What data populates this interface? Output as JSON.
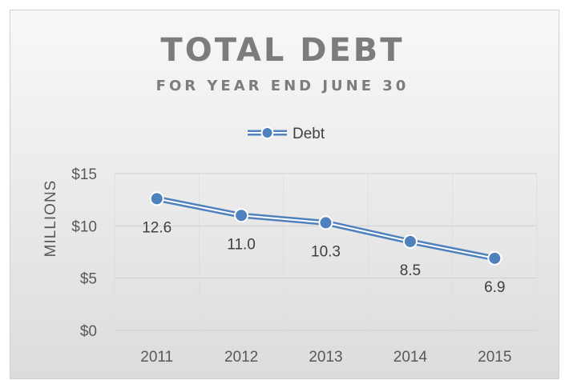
{
  "chart_data": {
    "type": "line",
    "title": "TOTAL DEBT",
    "subtitle": "FOR YEAR END JUNE 30",
    "xlabel": "",
    "ylabel": "MILLIONS",
    "categories": [
      "2011",
      "2012",
      "2013",
      "2014",
      "2015"
    ],
    "series": [
      {
        "name": "Debt",
        "values": [
          12.6,
          11.0,
          10.3,
          8.5,
          6.9
        ],
        "data_labels": [
          "12.6",
          "11.0",
          "10.3",
          "8.5",
          "6.9"
        ],
        "color": "#4f81bd"
      }
    ],
    "ylim": [
      0,
      15
    ],
    "yticks": [
      0,
      5,
      10,
      15
    ],
    "ytick_labels": [
      "$0",
      "$5",
      "$10",
      "$15"
    ],
    "grid": true,
    "legend": "top"
  }
}
